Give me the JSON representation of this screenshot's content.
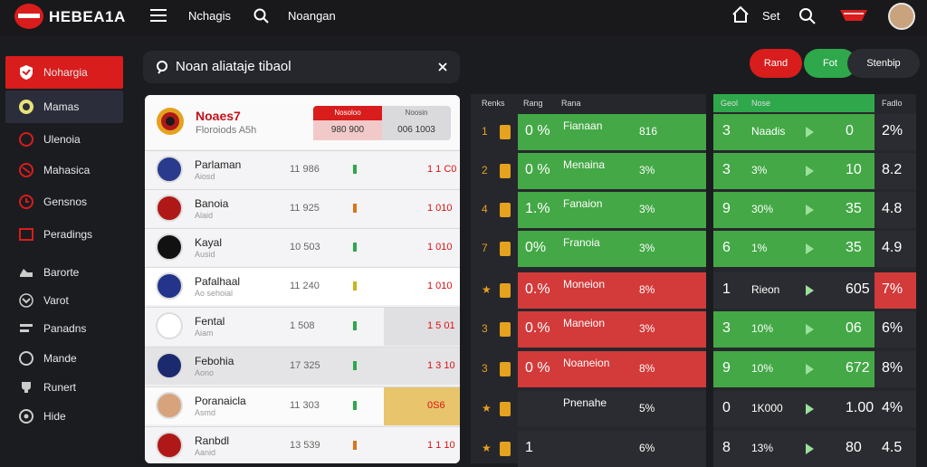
{
  "header": {
    "brand": "HEBEA1A",
    "nav_1": "Nchagis",
    "nav_2": "Noangan",
    "right_label": "Set"
  },
  "sidebar": {
    "items": [
      {
        "label": "Nohargia",
        "icon": "shield-icon",
        "state": "active"
      },
      {
        "label": "Mamas",
        "icon": "globe-icon",
        "state": "selected"
      },
      {
        "label": "Ulenoia",
        "icon": "circle-icon",
        "state": "normal"
      },
      {
        "label": "Mahasica",
        "icon": "ball-icon",
        "state": "normal"
      },
      {
        "label": "Gensnos",
        "icon": "clock-icon",
        "state": "normal"
      },
      {
        "label": "Peradings",
        "icon": "square-icon",
        "state": "normal"
      },
      {
        "label": "Barorte",
        "icon": "sneaker-icon",
        "state": "normal"
      },
      {
        "label": "Varot",
        "icon": "chevron-down-icon",
        "state": "normal"
      },
      {
        "label": "Panadns",
        "icon": "lines-icon",
        "state": "normal"
      },
      {
        "label": "Mande",
        "icon": "ring-icon",
        "state": "normal"
      },
      {
        "label": "Runert",
        "icon": "trophy-icon",
        "state": "normal"
      },
      {
        "label": "Hide",
        "icon": "dot-icon",
        "state": "normal"
      }
    ]
  },
  "search": {
    "text": "Noan aliataje tibaol"
  },
  "top_buttons": {
    "red_label": "Rand",
    "green_label": "Fot",
    "dark_label": "Stenbip"
  },
  "card": {
    "title": "Noaes7",
    "subtitle": "Floroiods A5h",
    "box_head_a": "Nosoloo",
    "box_val_a": "980 900",
    "box_head_b": "Noosin",
    "box_val_b": "006 1003",
    "rows": [
      {
        "name": "Parlaman",
        "sub": "Aiosd",
        "val": "11 986",
        "pct": "1 1 C0",
        "crest": "#2a3a8c"
      },
      {
        "name": "Banoia",
        "sub": "Alaid",
        "val": "11 925",
        "pct": "1 010",
        "crest": "#b01818"
      },
      {
        "name": "Kayal",
        "sub": "Ausid",
        "val": "10 503",
        "pct": "1 010",
        "crest": "#111111"
      },
      {
        "name": "Pafalhaal",
        "sub": "Ao sehoial",
        "val": "11 240",
        "pct": "1 010",
        "crest": "#23348a"
      },
      {
        "name": "Fental",
        "sub": "Aiam",
        "val": "1 508",
        "pct": "1 5 01",
        "crest": "#ffffff"
      },
      {
        "name": "Febohia",
        "sub": "Aono",
        "val": "17 325",
        "pct": "1 3 10",
        "crest": "#1b2a6e"
      },
      {
        "name": "Poranaicla",
        "sub": "Asmd",
        "val": "11 303",
        "pct": "0S6",
        "crest": "#d6a37c"
      },
      {
        "name": "Ranbdl",
        "sub": "Aanid",
        "val": "13 539",
        "pct": "1 1 10",
        "crest": "#b01818"
      }
    ]
  },
  "table_left": {
    "headers": [
      "Renks",
      "Rang",
      "Rana"
    ],
    "rows": [
      {
        "rank": "1",
        "pct": "0 %",
        "name": "Fianaan",
        "v": "816"
      },
      {
        "rank": "2",
        "pct": "0 %",
        "name": "Menaina",
        "v": "3%"
      },
      {
        "rank": "4",
        "pct": "1.%",
        "name": "Fanaion",
        "v": "3%"
      },
      {
        "rank": "7",
        "pct": "0%",
        "name": "Franoia",
        "v": "3%"
      },
      {
        "rank": "★",
        "pct": "0.%",
        "name": "Moneion",
        "v": "8%"
      },
      {
        "rank": "3",
        "pct": "0.%",
        "name": "Maneion",
        "v": "3%"
      },
      {
        "rank": "3",
        "pct": "0 %",
        "name": "Noaneion",
        "v": "8%"
      },
      {
        "rank": "★",
        "pct": "",
        "name": "Pnenahe",
        "v": "5%"
      },
      {
        "rank": "★",
        "pct": "1",
        "name": "",
        "v": "6%"
      }
    ]
  },
  "table_right": {
    "headers": [
      "Geol",
      "Nose",
      "Fadlo"
    ],
    "rows": [
      {
        "a": "3",
        "b": "Naadis",
        "c": "0",
        "d": "2%"
      },
      {
        "a": "3",
        "b": "3%",
        "c": "10",
        "d": "8.2"
      },
      {
        "a": "9",
        "b": "30%",
        "c": "35",
        "d": "4.8"
      },
      {
        "a": "6",
        "b": "1%",
        "c": "35",
        "d": "4.9"
      },
      {
        "a": "1",
        "b": "Rieon",
        "c": "605",
        "d": "7%"
      },
      {
        "a": "3",
        "b": "10%",
        "c": "06",
        "d": "6%"
      },
      {
        "a": "9",
        "b": "10%",
        "c": "672",
        "d": "8%"
      },
      {
        "a": "0",
        "b": "1K000",
        "c": "1.00",
        "d": "4%"
      },
      {
        "a": "8",
        "b": "13%",
        "c": "80",
        "d": "4.5"
      }
    ]
  },
  "colors": {
    "accent_red": "#d91c1c",
    "accent_green": "#2ea84a",
    "panel_dark": "#26272c"
  }
}
